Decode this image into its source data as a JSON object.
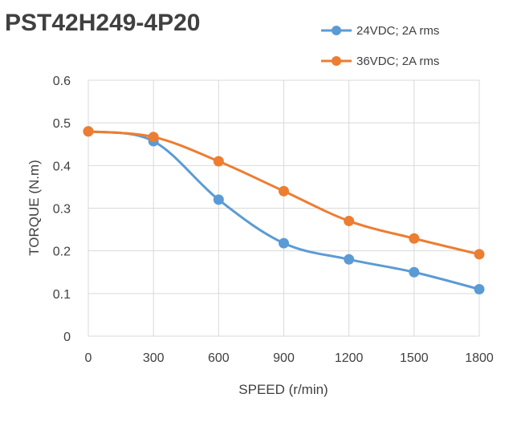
{
  "chart_data": {
    "type": "line",
    "title": "PST42H249-4P20",
    "xlabel": "SPEED (r/min)",
    "ylabel": "TORQUE (N.m)",
    "x": [
      0,
      300,
      600,
      900,
      1200,
      1500,
      1800
    ],
    "x_ticks": [
      "0",
      "300",
      "600",
      "900",
      "1200",
      "1500",
      "1800"
    ],
    "y_ticks": [
      "0",
      "0.1",
      "0.2",
      "0.3",
      "0.4",
      "0.5",
      "0.6"
    ],
    "xlim": [
      0,
      1800
    ],
    "ylim": [
      0,
      0.6
    ],
    "grid": true,
    "legend_position": "top-right",
    "series": [
      {
        "name": "24VDC; 2A rms",
        "color": "#5B9BD5",
        "values": [
          0.48,
          0.457,
          0.32,
          0.218,
          0.18,
          0.15,
          0.11
        ]
      },
      {
        "name": "36VDC; 2A rms",
        "color": "#ED7D31",
        "values": [
          0.48,
          0.467,
          0.41,
          0.34,
          0.27,
          0.229,
          0.192
        ]
      }
    ]
  }
}
